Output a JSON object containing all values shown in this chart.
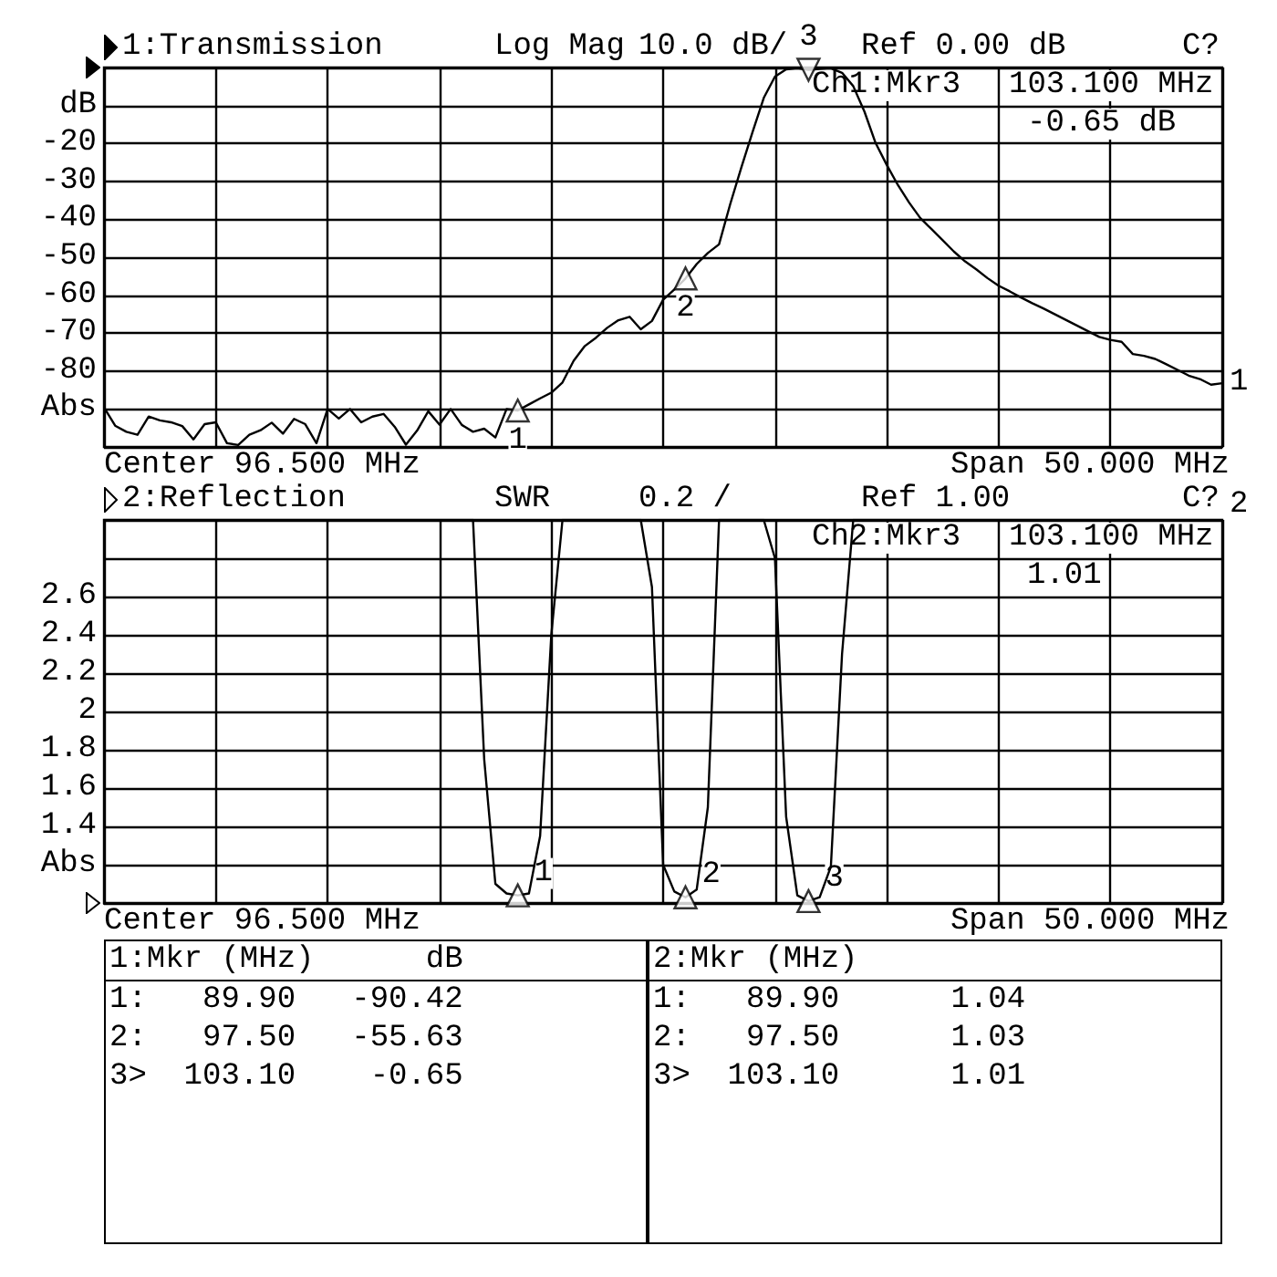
{
  "chart_data": [
    {
      "type": "line",
      "title": "1:Transmission",
      "categories": [
        null,
        null,
        null,
        null,
        null,
        null,
        null,
        null,
        null,
        null,
        null,
        null,
        null,
        null,
        null,
        null,
        null,
        null,
        null,
        null,
        null,
        null,
        null,
        null,
        null,
        null,
        null,
        null,
        null,
        null,
        null,
        null,
        null,
        null,
        null,
        null,
        null,
        null,
        null,
        null,
        null,
        null,
        null,
        null,
        null,
        null,
        null,
        null,
        null,
        null,
        null,
        null,
        null,
        null,
        null,
        null,
        null,
        null,
        null,
        null,
        null,
        null,
        null,
        null,
        null,
        null,
        null,
        null,
        null,
        null,
        null,
        null,
        null,
        null,
        null,
        null,
        null,
        null,
        null,
        null,
        null,
        null,
        null,
        null,
        null,
        null,
        null,
        null,
        null,
        null,
        null,
        null,
        null,
        null,
        null,
        null,
        null,
        null,
        null,
        null,
        null
      ],
      "ylim": [
        -100,
        0
      ],
      "yticks": [
        {
          "value": -100,
          "label": null
        },
        {
          "value": -90,
          "label": "Abs"
        },
        -80,
        -70,
        -60,
        -50,
        -40,
        -30,
        -20,
        {
          "value": -10,
          "label": "dB"
        },
        {
          "value": 0,
          "label": null
        }
      ],
      "tick_labels": "y",
      "grid": true,
      "line_style": "solid",
      "annotations": [
        "Log Mag",
        "10.0 dB/",
        "Ref 0.00 dB",
        "C?",
        "Ch1:Mkr3",
        "103.100 MHz",
        "-0.65 dB",
        "Center 96.500 MHz",
        "Span 50.000 MHz",
        "1",
        "2",
        "3",
        "1"
      ],
      "series": [
        {
          "color": "#000000",
          "values": [
            -89.6,
            -94.4,
            -96,
            -96.8,
            -92,
            -93,
            -93.5,
            -94.5,
            -98,
            -94,
            -93.5,
            -99,
            -99.5,
            -96.8,
            -95.6,
            -93.6,
            -96.5,
            -92.6,
            -94,
            -99,
            -90,
            -92.5,
            -90,
            -93.5,
            -92,
            -91.3,
            -94.7,
            -99.4,
            -95.7,
            -90.6,
            -94.1,
            -90,
            -94.2,
            -96,
            -95.2,
            -97.5,
            -90,
            -90.4,
            -88.8,
            -87.2,
            -85.7,
            -83,
            -77.3,
            -73.4,
            -71.2,
            -68.6,
            -66.6,
            -65.7,
            -69,
            -66.8,
            -61.2,
            -58.5,
            -55.6,
            -51.8,
            -48.9,
            -46.6,
            -36,
            -26.3,
            -17,
            -8,
            -2.4,
            -0.5,
            -0.2,
            -0.6,
            -0.4,
            -0.2,
            -1.4,
            -4.9,
            -11.6,
            -19.9,
            -25.7,
            -31,
            -35.6,
            -39.7,
            -42.6,
            -45.5,
            -48.5,
            -51.1,
            -53.2,
            -55.5,
            -57.5,
            -59,
            -60.6,
            -62.1,
            -63.5,
            -65,
            -66.5,
            -68,
            -69.5,
            -71,
            -71.8,
            -72.3,
            -75.5,
            -76,
            -76.8,
            -78.2,
            -79.7,
            -81.2,
            -82.1,
            -83.6,
            -83.2
          ]
        },
        {
          "type": "scatter",
          "marker": "triangle",
          "color": "#000000",
          "values": [
            null,
            null,
            null,
            null,
            null,
            null,
            null,
            null,
            null,
            null,
            null,
            null,
            null,
            null,
            null,
            null,
            null,
            null,
            null,
            null,
            null,
            null,
            null,
            null,
            null,
            null,
            null,
            null,
            null,
            null,
            null,
            null,
            null,
            null,
            null,
            null,
            null,
            -90.4,
            null,
            null,
            null,
            null,
            null,
            null,
            null,
            null,
            null,
            null,
            null,
            null,
            null,
            null,
            -55.6,
            null,
            null,
            null,
            null,
            null,
            null,
            null,
            null,
            null,
            null,
            -0.6,
            null,
            null,
            null,
            null,
            null,
            null,
            null,
            null,
            null,
            null,
            null,
            null,
            null,
            null,
            null,
            null,
            null,
            null,
            null,
            null,
            null,
            null,
            null,
            null,
            null,
            null,
            null,
            null,
            null,
            null,
            null,
            null,
            null,
            null,
            null,
            null,
            null
          ]
        }
      ]
    },
    {
      "type": "line",
      "title": "2:Reflection",
      "categories": [
        null,
        null,
        null,
        null,
        null,
        null,
        null,
        null,
        null,
        null,
        null,
        null,
        null,
        null,
        null,
        null,
        null,
        null,
        null,
        null,
        null,
        null,
        null,
        null,
        null,
        null,
        null,
        null,
        null,
        null,
        null,
        null,
        null,
        null,
        null,
        null,
        null,
        null,
        null,
        null,
        null,
        null,
        null,
        null,
        null,
        null,
        null,
        null,
        null,
        null,
        null,
        null,
        null,
        null,
        null,
        null,
        null,
        null,
        null,
        null,
        null,
        null,
        null,
        null,
        null,
        null,
        null,
        null,
        null,
        null,
        null,
        null,
        null,
        null,
        null,
        null,
        null,
        null,
        null,
        null,
        null,
        null,
        null,
        null,
        null,
        null,
        null,
        null,
        null,
        null,
        null,
        null,
        null,
        null,
        null,
        null,
        null,
        null,
        null,
        null,
        null
      ],
      "ylim": [
        1,
        3
      ],
      "yticks": [
        {
          "value": 1,
          "label": null
        },
        {
          "value": 1.2,
          "label": "Abs"
        },
        1.4,
        1.6,
        1.8,
        2,
        2.2,
        2.4,
        2.6,
        {
          "value": 2.8,
          "label": null
        },
        {
          "value": 3,
          "label": null
        }
      ],
      "tick_labels": "y",
      "grid": true,
      "line_style": "solid",
      "annotations": [
        "SWR",
        "0.2 /",
        "Ref 1.00",
        "C?",
        "Ch2:Mkr3",
        "103.100 MHz",
        "1.01",
        "Center 96.500 MHz",
        "Span 50.000 MHz",
        "1",
        "2",
        "3",
        "2"
      ],
      "series": [
        {
          "color": "#000000",
          "values": [
            3,
            3,
            3,
            3,
            3,
            3,
            3,
            3,
            3,
            3,
            3,
            3,
            3,
            3,
            3,
            3,
            3,
            3,
            3,
            3,
            3,
            3,
            3,
            3,
            3,
            3,
            3,
            3,
            3,
            3,
            3,
            3,
            3,
            3,
            1.75,
            1.1,
            1.05,
            1.04,
            1.05,
            1.35,
            2.4,
            3,
            3,
            3,
            3,
            3,
            3,
            3,
            3,
            2.65,
            1.2,
            1.06,
            1.03,
            1.07,
            1.5,
            3,
            3,
            3,
            3,
            3,
            2.8,
            1.45,
            1.04,
            1.01,
            1.03,
            1.19,
            2.3,
            3,
            3,
            3,
            3,
            3,
            3,
            3,
            3,
            3,
            3,
            3,
            3,
            3,
            3,
            3,
            3,
            3,
            3,
            3,
            3,
            3,
            3,
            3,
            3,
            3,
            3,
            3,
            3,
            3,
            3,
            3,
            3,
            3,
            3
          ]
        },
        {
          "type": "scatter",
          "marker": "triangle",
          "color": "#000000",
          "values": [
            null,
            null,
            null,
            null,
            null,
            null,
            null,
            null,
            null,
            null,
            null,
            null,
            null,
            null,
            null,
            null,
            null,
            null,
            null,
            null,
            null,
            null,
            null,
            null,
            null,
            null,
            null,
            null,
            null,
            null,
            null,
            null,
            null,
            null,
            null,
            null,
            null,
            1.04,
            null,
            null,
            null,
            null,
            null,
            null,
            null,
            null,
            null,
            null,
            null,
            null,
            null,
            null,
            1.03,
            null,
            null,
            null,
            null,
            null,
            null,
            null,
            null,
            null,
            null,
            1.01,
            null,
            null,
            null,
            null,
            null,
            null,
            null,
            null,
            null,
            null,
            null,
            null,
            null,
            null,
            null,
            null,
            null,
            null,
            null,
            null,
            null,
            null,
            null,
            null,
            null,
            null,
            null,
            null,
            null,
            null,
            null,
            null,
            null,
            null,
            null,
            null,
            null
          ]
        }
      ]
    },
    {
      "type": "other",
      "title": "1:Mkr (MHz)      dB",
      "annotations": [
        "1:   89.90   -90.42",
        "2:   97.50   -55.63",
        "3>  103.10    -0.65"
      ]
    },
    {
      "type": "other",
      "title": "2:Mkr (MHz)",
      "annotations": [
        "1:   89.90      1.04",
        "2:   97.50      1.03",
        "3>  103.10      1.01"
      ]
    }
  ]
}
